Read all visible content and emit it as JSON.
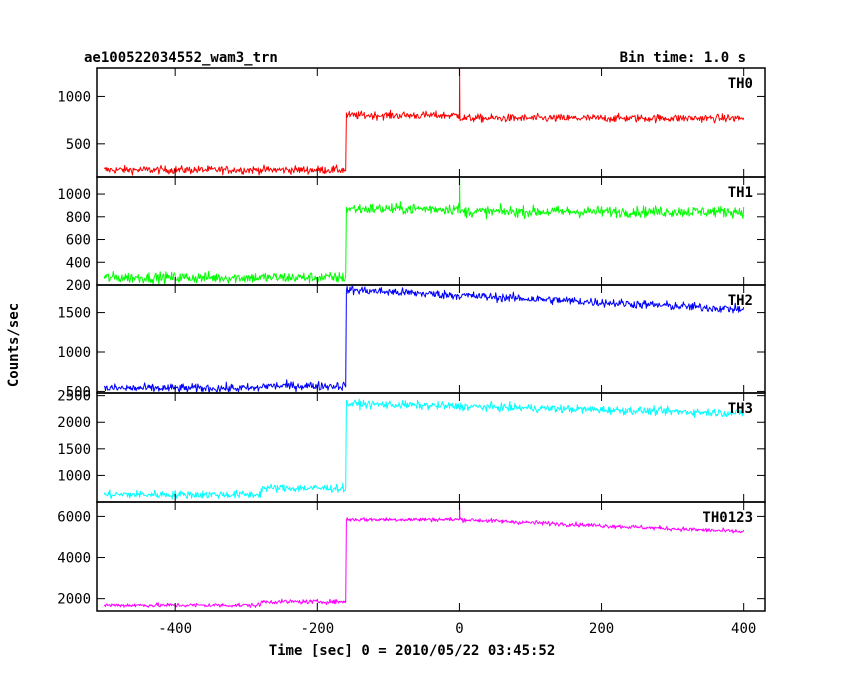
{
  "chart_data": {
    "type": "line",
    "title": "ae100522034552_wam3_trn",
    "subtitle": "Bin time: 1.0 s",
    "xlabel": "Time [sec] 0 = 2010/05/22 03:45:52",
    "ylabel": "Counts/sec",
    "xlim": [
      -510,
      430
    ],
    "xticks": [
      -400,
      -200,
      0,
      200,
      400
    ],
    "grid": false,
    "panels": [
      {
        "name": "TH0",
        "color": "#ff0000",
        "ylim": [
          150,
          1300
        ],
        "yticks": [
          500,
          1000
        ],
        "levels": [
          {
            "from": -500,
            "to": -160,
            "value": 225
          },
          {
            "from": -160,
            "to": 0,
            "value": 800
          },
          {
            "from": 0,
            "to": 400,
            "value": 770
          },
          {
            "from": 400,
            "to": 400,
            "value": 740
          }
        ],
        "noise": 30,
        "spikes": [
          {
            "x": 0,
            "value": 1300
          }
        ]
      },
      {
        "name": "TH1",
        "color": "#00ff00",
        "ylim": [
          200,
          1150
        ],
        "yticks": [
          200,
          400,
          600,
          800,
          1000
        ],
        "levels": [
          {
            "from": -500,
            "to": -160,
            "value": 265
          },
          {
            "from": -160,
            "to": 0,
            "value": 870
          },
          {
            "from": 0,
            "to": 400,
            "value": 845
          },
          {
            "from": 400,
            "to": 400,
            "value": 810
          }
        ],
        "noise": 35,
        "spikes": [
          {
            "x": 0,
            "value": 1150
          }
        ]
      },
      {
        "name": "TH2",
        "color": "#0000ff",
        "ylim": [
          480,
          1850
        ],
        "yticks": [
          500,
          1000,
          1500
        ],
        "levels": [
          {
            "from": -500,
            "to": -280,
            "value": 540
          },
          {
            "from": -280,
            "to": -160,
            "value": 570
          },
          {
            "from": -160,
            "to": -160,
            "value": 1790
          },
          {
            "from": 400,
            "to": 400,
            "value": 1540
          }
        ],
        "noise": 40,
        "spikes": []
      },
      {
        "name": "TH3",
        "color": "#00ffff",
        "ylim": [
          500,
          2550
        ],
        "yticks": [
          1000,
          1500,
          2000,
          2500
        ],
        "levels": [
          {
            "from": -500,
            "to": -280,
            "value": 640
          },
          {
            "from": -280,
            "to": -160,
            "value": 760
          },
          {
            "from": -160,
            "to": -160,
            "value": 2350
          },
          {
            "from": 400,
            "to": 400,
            "value": 2170
          }
        ],
        "noise": 55,
        "spikes": []
      },
      {
        "name": "TH0123",
        "color": "#ff00ff",
        "ylim": [
          1400,
          6700
        ],
        "yticks": [
          2000,
          4000,
          6000
        ],
        "levels": [
          {
            "from": -500,
            "to": -280,
            "value": 1680
          },
          {
            "from": -280,
            "to": -160,
            "value": 1850
          },
          {
            "from": -160,
            "to": 0,
            "value": 5850
          },
          {
            "from": 400,
            "to": 400,
            "value": 5250
          }
        ],
        "noise": 75,
        "spikes": [
          {
            "x": 0,
            "value": 6550
          }
        ]
      }
    ]
  }
}
